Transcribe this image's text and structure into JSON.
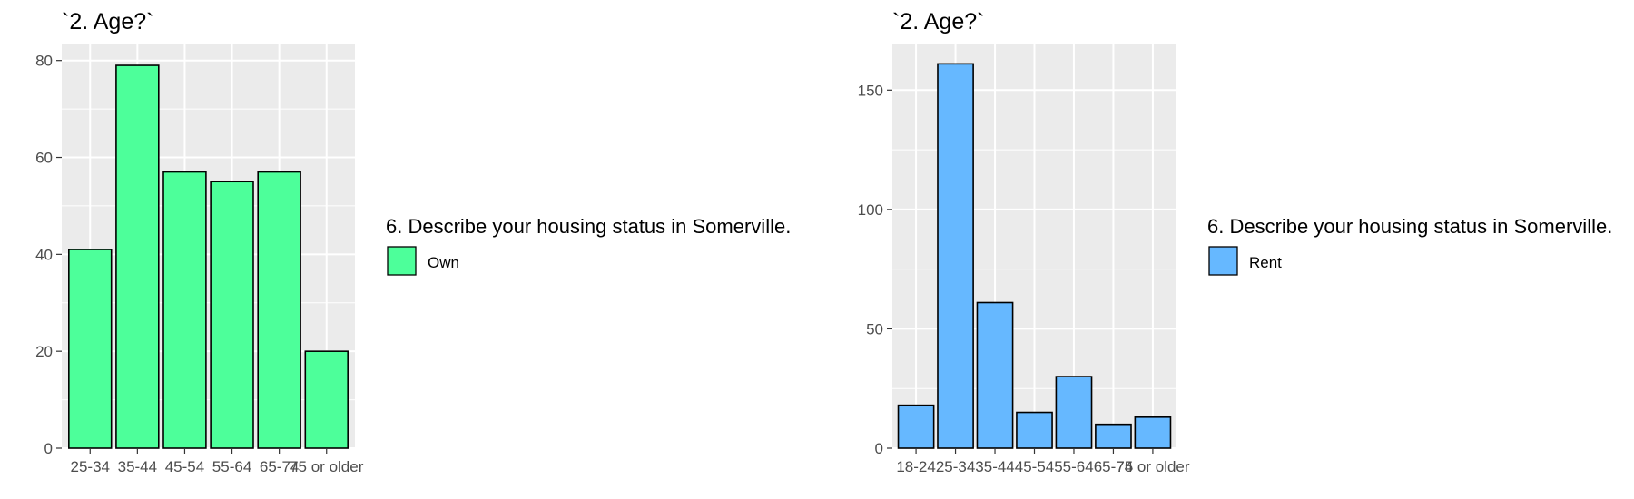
{
  "chart_data": [
    {
      "type": "bar",
      "title": "`2. Age?`",
      "categories": [
        "25-34",
        "35-44",
        "45-54",
        "55-64",
        "65-74",
        "75 or older"
      ],
      "values": [
        41,
        79,
        57,
        55,
        57,
        20
      ],
      "ylim": [
        0,
        83.5
      ],
      "yticks": [
        0,
        20,
        40,
        60,
        80
      ],
      "grid": true,
      "legend": {
        "title": "6. Describe your housing status in Somerville.",
        "label": "Own",
        "placement": "right"
      },
      "color": "#4dff9a"
    },
    {
      "type": "bar",
      "title": "`2. Age?`",
      "categories": [
        "18-24",
        "25-34",
        "35-44",
        "45-54",
        "55-64",
        "65-74",
        "75 or older"
      ],
      "values": [
        18,
        161,
        61,
        15,
        30,
        10,
        13
      ],
      "ylim": [
        0,
        169.5
      ],
      "yticks": [
        0,
        50,
        100,
        150
      ],
      "grid": true,
      "legend": {
        "title": "6. Describe your housing status in Somerville.",
        "label": "Rent",
        "placement": "right"
      },
      "color": "#66b8ff"
    }
  ]
}
